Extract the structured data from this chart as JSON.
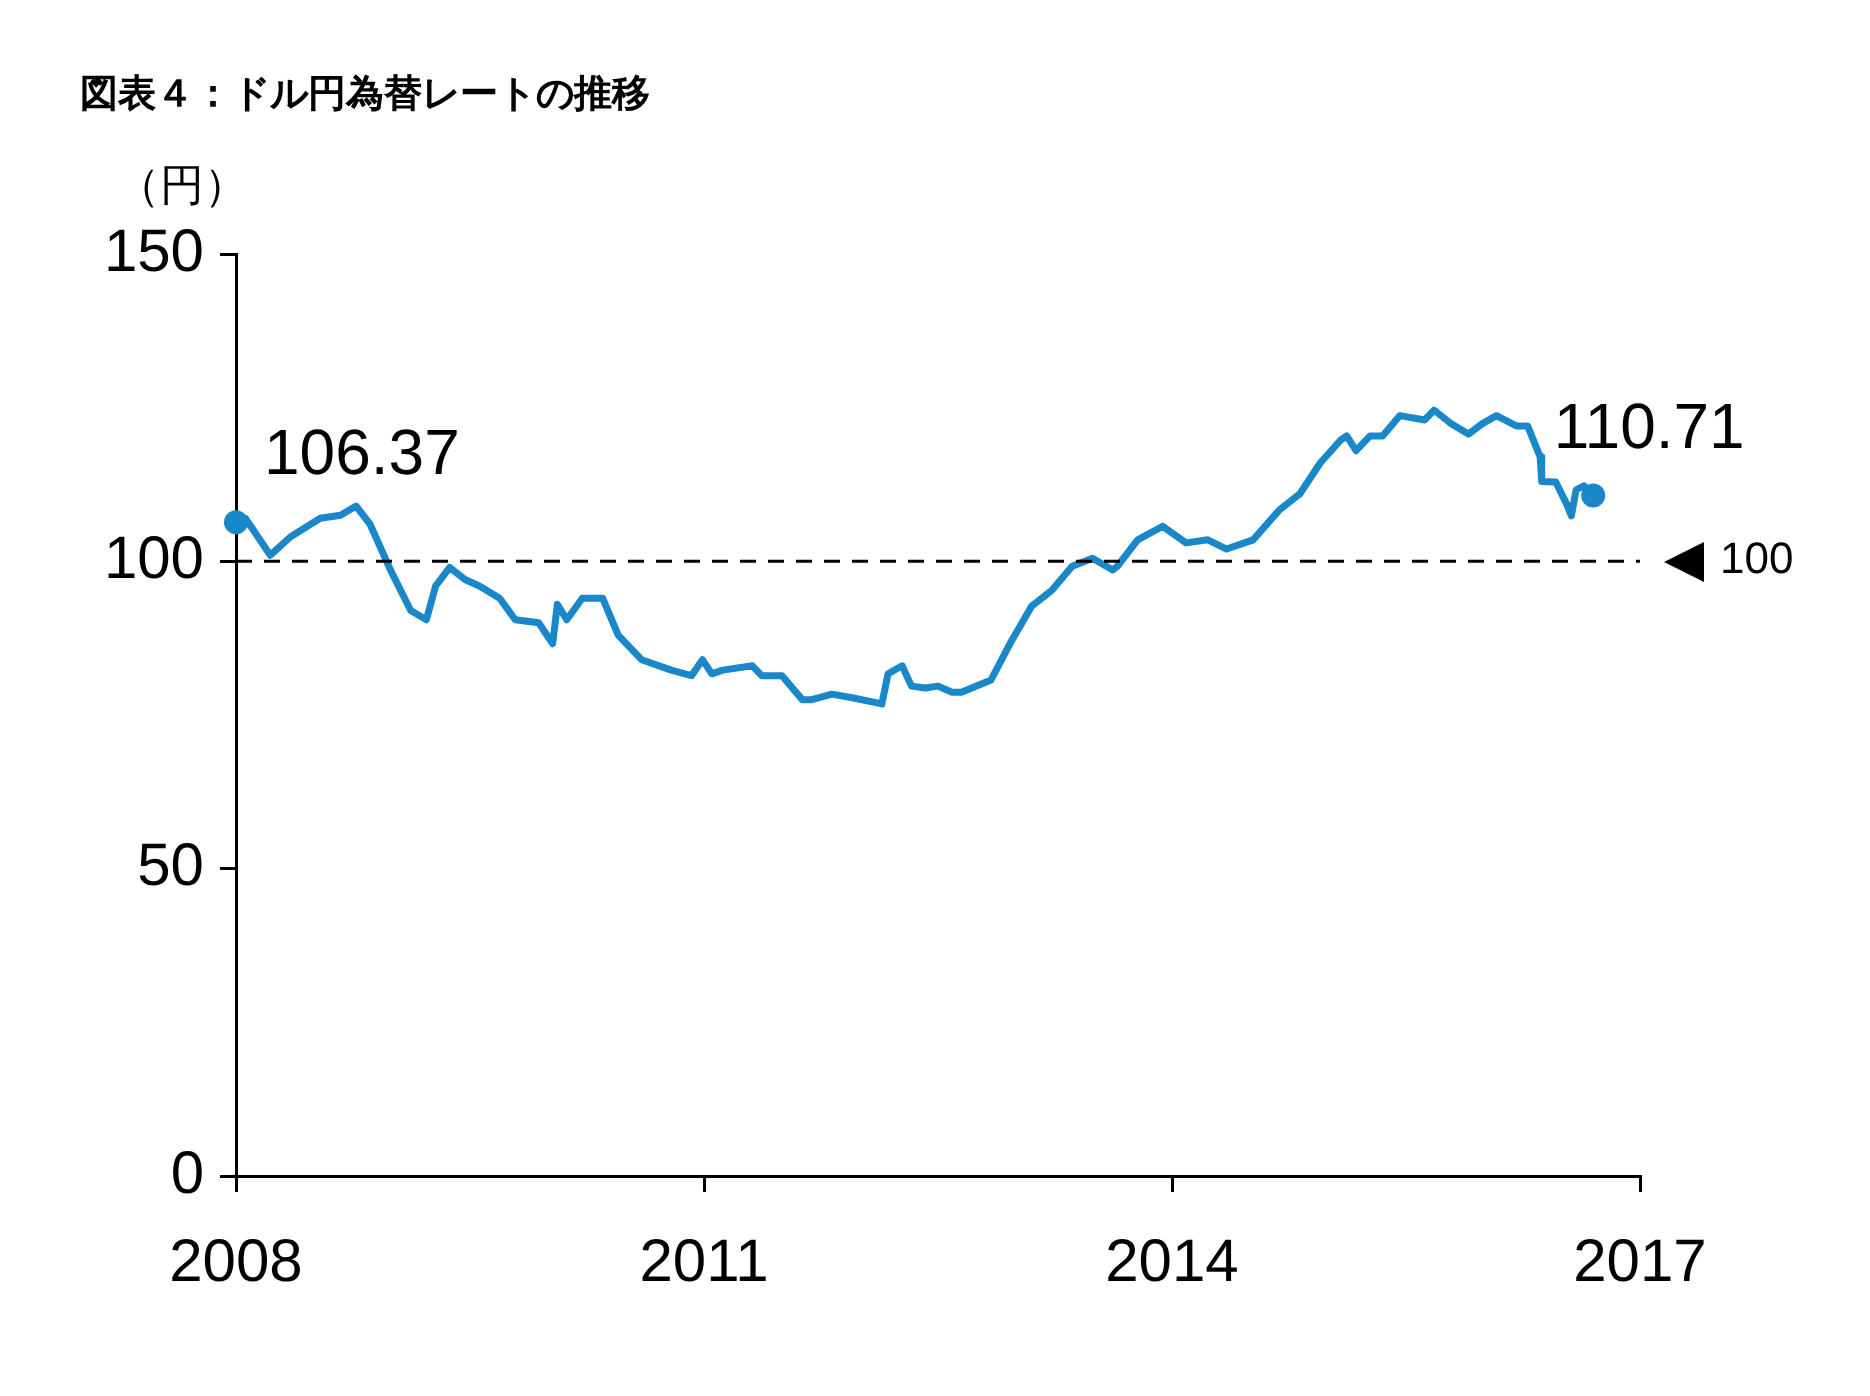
{
  "chart_data": {
    "type": "line",
    "title": "図表４：ドル円為替レートの推移",
    "ylabel": "（円）",
    "x": [
      2008,
      2008.06,
      2008.22,
      2008.35,
      2008.54,
      2008.67,
      2008.77,
      2008.86,
      2008.99,
      2009.12,
      2009.22,
      2009.28,
      2009.37,
      2009.47,
      2009.56,
      2009.69,
      2009.79,
      2009.94,
      2010.03,
      2010.06,
      2010.12,
      2010.22,
      2010.35,
      2010.45,
      2010.6,
      2010.79,
      2010.92,
      2010.99,
      2011.05,
      2011.12,
      2011.31,
      2011.37,
      2011.5,
      2011.63,
      2011.69,
      2011.82,
      2011.95,
      2012.14,
      2012.18,
      2012.27,
      2012.33,
      2012.42,
      2012.5,
      2012.59,
      2012.65,
      2012.84,
      2012.97,
      2013.1,
      2013.23,
      2013.36,
      2013.49,
      2013.62,
      2013.65,
      2013.78,
      2013.94,
      2014.09,
      2014.23,
      2014.35,
      2014.52,
      2014.69,
      2014.82,
      2014.95,
      2015.08,
      2015.12,
      2015.18,
      2015.27,
      2015.35,
      2015.46,
      2015.62,
      2015.68,
      2015.79,
      2015.9,
      2015.99,
      2016.08,
      2016.21,
      2016.28,
      2016.36,
      2016.37,
      2016.46,
      2016.53,
      2016.56,
      2016.59,
      2016.64,
      2016.7
    ],
    "series": [
      {
        "color": "#1a87c9",
        "values": [
          106.37,
          107,
          101,
          104,
          107,
          107.5,
          109,
          106,
          98.6,
          92,
          90.5,
          96,
          99,
          97,
          96,
          94,
          90.5,
          90,
          86.6,
          93,
          90.5,
          94,
          94,
          88,
          84,
          82.3,
          81.4,
          84,
          81.7,
          82.3,
          83,
          81.4,
          81.4,
          77.5,
          77.5,
          78.4,
          77.8,
          76.8,
          81.7,
          83,
          79.7,
          79.4,
          79.7,
          78.7,
          78.7,
          80.7,
          87,
          92.7,
          95.3,
          99.2,
          100.5,
          98.6,
          99.2,
          103.5,
          105.7,
          103,
          103.5,
          102,
          103.5,
          108.4,
          111,
          116,
          119.7,
          120.4,
          118,
          120.4,
          120.4,
          123.7,
          123,
          124.6,
          122.4,
          120.7,
          122.4,
          123.7,
          122,
          122,
          117,
          113,
          112.9,
          109.3,
          107.4,
          111.6,
          112.3,
          110.71
        ]
      }
    ],
    "annotations": [
      {
        "text": "106.37",
        "x": 2008,
        "y": 106.37
      },
      {
        "text": "110.71",
        "x": 2016.7,
        "y": 110.71
      }
    ],
    "ref_lines": [
      {
        "axis": "y",
        "value": 100,
        "label": "100",
        "color": "#000000",
        "line_style": "dashed"
      }
    ],
    "xlim": [
      2008,
      2017
    ],
    "xticks": [
      2008,
      2011,
      2014,
      2017
    ],
    "ylim": [
      0,
      150
    ],
    "yticks": [
      0,
      50,
      100,
      150
    ],
    "grid": false,
    "legend": false,
    "marker": "none",
    "line_style": "solid"
  }
}
